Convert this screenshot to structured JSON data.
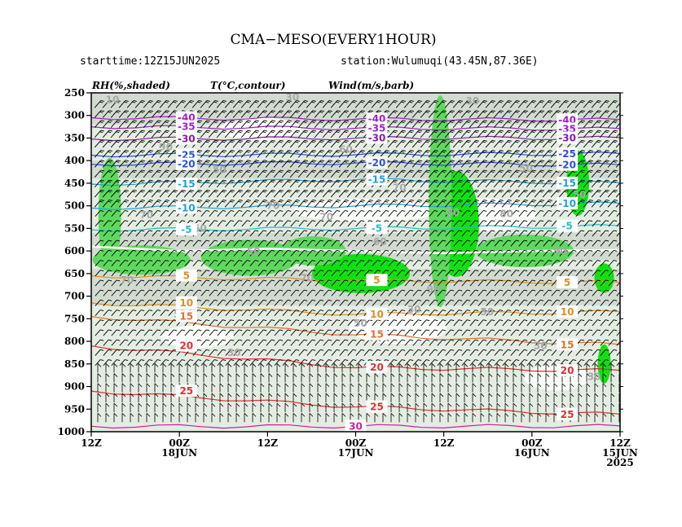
{
  "header": {
    "title": "CMA−MESO(EVERY1HOUR)",
    "starttime": "starttime:12Z15JUN2025",
    "station": "station:Wulumuqi(43.45N,87.36E)"
  },
  "panel_labels": {
    "rh": "RH(%,shaded)",
    "temp": "T(°C,contour)",
    "wind": "Wind(m/s,barb)"
  },
  "chart_data": {
    "type": "time-height cross section",
    "y_axis": {
      "label": "",
      "scale": "pressure, decreasing upward",
      "ticks": [
        "250",
        "300",
        "350",
        "400",
        "450",
        "500",
        "550",
        "600",
        "650",
        "700",
        "750",
        "800",
        "850",
        "900",
        "950",
        "1000"
      ],
      "range": [
        1000,
        250
      ]
    },
    "x_axis": {
      "direction": "time increases right to left",
      "ticks": [
        {
          "line1": "12Z",
          "line2": "",
          "line3": ""
        },
        {
          "line1": "00Z",
          "line2": "18JUN",
          "line3": ""
        },
        {
          "line1": "12Z",
          "line2": "",
          "line3": ""
        },
        {
          "line1": "00Z",
          "line2": "17JUN",
          "line3": ""
        },
        {
          "line1": "12Z",
          "line2": "",
          "line3": ""
        },
        {
          "line1": "00Z",
          "line2": "16JUN",
          "line3": ""
        },
        {
          "line1": "12Z",
          "line2": "15JUN",
          "line3": "2025"
        }
      ]
    },
    "temperature_contour_labels": [
      {
        "value": "-40",
        "level": 305,
        "series": "t-40"
      },
      {
        "value": "-40",
        "level": 308,
        "series": "t-40"
      },
      {
        "value": "-40",
        "level": 310,
        "series": "t-40"
      },
      {
        "value": "-35",
        "level": 325,
        "series": "t-35"
      },
      {
        "value": "-35",
        "level": 328,
        "series": "t-35"
      },
      {
        "value": "-35",
        "level": 330,
        "series": "t-35"
      },
      {
        "value": "-30",
        "level": 352,
        "series": "t-30"
      },
      {
        "value": "-30",
        "level": 350,
        "series": "t-30"
      },
      {
        "value": "-30",
        "level": 350,
        "series": "t-30"
      },
      {
        "value": "-25",
        "level": 388,
        "series": "t-25"
      },
      {
        "value": "-25",
        "level": 385,
        "series": "t-25"
      },
      {
        "value": "-20",
        "level": 408,
        "series": "t-20"
      },
      {
        "value": "-20",
        "level": 405,
        "series": "t-20"
      },
      {
        "value": "-20",
        "level": 410,
        "series": "t-20"
      },
      {
        "value": "-15",
        "level": 452,
        "series": "t-15"
      },
      {
        "value": "-15",
        "level": 442,
        "series": "t-15"
      },
      {
        "value": "-15",
        "level": 450,
        "series": "t-15"
      },
      {
        "value": "-10",
        "level": 505,
        "series": "t-10"
      },
      {
        "value": "-10",
        "level": 495,
        "series": "t-10"
      },
      {
        "value": "-5",
        "level": 553,
        "series": "t-5"
      },
      {
        "value": "-5",
        "level": 550,
        "series": "t-5"
      },
      {
        "value": "-5",
        "level": 545,
        "series": "t-5"
      },
      {
        "value": "5",
        "level": 655,
        "series": "t5"
      },
      {
        "value": "5",
        "level": 665,
        "series": "t5"
      },
      {
        "value": "5",
        "level": 670,
        "series": "t5"
      },
      {
        "value": "10",
        "level": 715,
        "series": "t10"
      },
      {
        "value": "10",
        "level": 740,
        "series": "t10"
      },
      {
        "value": "10",
        "level": 735,
        "series": "t10"
      },
      {
        "value": "15",
        "level": 745,
        "series": "t15"
      },
      {
        "value": "15",
        "level": 785,
        "series": "t15"
      },
      {
        "value": "15",
        "level": 808,
        "series": "t15"
      },
      {
        "value": "20",
        "level": 810,
        "series": "t20"
      },
      {
        "value": "20",
        "level": 858,
        "series": "t20"
      },
      {
        "value": "20",
        "level": 865,
        "series": "t20"
      },
      {
        "value": "25",
        "level": 910,
        "series": "t25"
      },
      {
        "value": "25",
        "level": 945,
        "series": "t25"
      },
      {
        "value": "25",
        "level": 962,
        "series": "t25"
      },
      {
        "value": "30",
        "level": 988,
        "series": "t30"
      }
    ],
    "rh_contour_labels": [
      {
        "value": "10",
        "level": 265
      },
      {
        "value": "30",
        "level": 260
      },
      {
        "value": "30",
        "level": 268
      },
      {
        "value": "90",
        "level": 370
      },
      {
        "value": "60",
        "level": 375
      },
      {
        "value": "50",
        "level": 418
      },
      {
        "value": "50",
        "level": 420
      },
      {
        "value": "70",
        "level": 460
      },
      {
        "value": "50",
        "level": 475
      },
      {
        "value": "70",
        "level": 500
      },
      {
        "value": "80",
        "level": 515
      },
      {
        "value": "70",
        "level": 520
      },
      {
        "value": "70",
        "level": 525
      },
      {
        "value": "80",
        "level": 518
      },
      {
        "value": "50",
        "level": 550
      },
      {
        "value": "60",
        "level": 580
      },
      {
        "value": "90",
        "level": 600
      },
      {
        "value": "50",
        "level": 602
      },
      {
        "value": "90",
        "level": 685
      },
      {
        "value": "70",
        "level": 665
      },
      {
        "value": "70",
        "level": 660
      },
      {
        "value": "50",
        "level": 735
      },
      {
        "value": "50",
        "level": 740
      },
      {
        "value": "50",
        "level": 760
      },
      {
        "value": "30",
        "level": 810
      },
      {
        "value": "30",
        "level": 825
      },
      {
        "value": "30",
        "level": 730
      },
      {
        "value": "30",
        "level": 878
      }
    ],
    "colors": {
      "t-40": "#a020c8",
      "t-35": "#a020c8",
      "t-30": "#8a1aa8",
      "t-25": "#2a4ee6",
      "t-20": "#2a4ee6",
      "t-15": "#20a0d8",
      "t-10": "#20a0d8",
      "t-5": "#20c0c8",
      "t0": "#ffffff",
      "t5": "#e09020",
      "t10": "#e09020",
      "t15": "#e07030",
      "t20": "#e03030",
      "t25": "#e03030",
      "t30": "#d020a0",
      "rh_label": "#a8a8a8",
      "rh_low": "#ffffff",
      "rh_mid": "#e3ede1",
      "rh_high": "#c9d3c7",
      "rh_moist": "#5ed85e",
      "rh_sat": "#12e012",
      "barb": "#000000"
    }
  }
}
